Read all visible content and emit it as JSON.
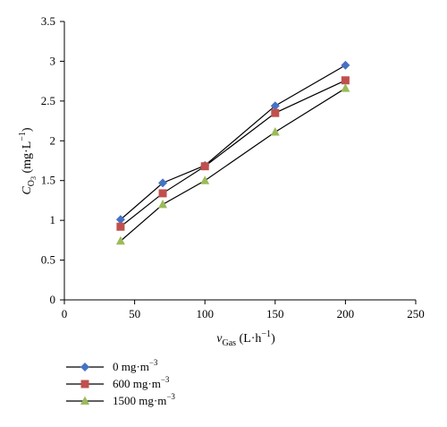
{
  "chart_data": {
    "type": "line",
    "x": [
      40,
      70,
      100,
      150,
      200
    ],
    "series": [
      {
        "name": "0 mg·m",
        "name_sup": "−3",
        "values": [
          1.01,
          1.47,
          1.69,
          2.44,
          2.95
        ],
        "color": "#4472C4",
        "marker": "diamond"
      },
      {
        "name": "600 mg·m",
        "name_sup": "−3",
        "values": [
          0.92,
          1.34,
          1.68,
          2.35,
          2.76
        ],
        "color": "#C0504D",
        "marker": "square"
      },
      {
        "name": "1500 mg·m",
        "name_sup": "−3",
        "values": [
          0.74,
          1.2,
          1.5,
          2.11,
          2.66
        ],
        "color": "#9BBB59",
        "marker": "triangle"
      }
    ],
    "xlim": [
      0,
      250
    ],
    "ylim": [
      0,
      3.5
    ],
    "xticks": [
      "0",
      "50",
      "100",
      "150",
      "200",
      "250"
    ],
    "yticks": [
      "0",
      "0.5",
      "1",
      "1.5",
      "2",
      "2.5",
      "3",
      "3.5"
    ],
    "xlabel": {
      "main": "v",
      "sub": "Gas",
      "unit": " (L·h",
      "unit_sup": "−1",
      "close": ")"
    },
    "ylabel": {
      "main": "C",
      "sub": "O",
      "subsub": "3",
      "unit": " (mg·L",
      "unit_sup": "−1",
      "close": ")"
    },
    "grid": false,
    "legend_position": "bottom-left"
  }
}
